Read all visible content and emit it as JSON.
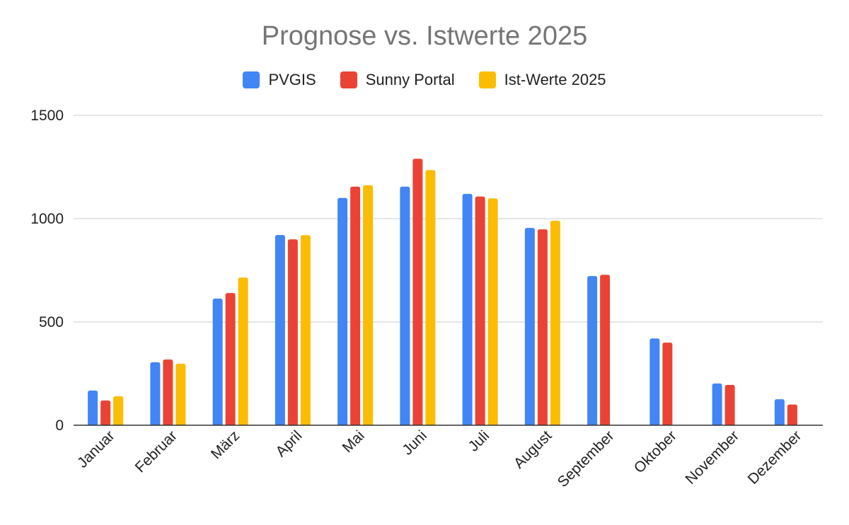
{
  "chart_data": {
    "type": "bar",
    "title": "Prognose vs. Istwerte 2025",
    "xlabel": "",
    "ylabel": "",
    "ylim": [
      0,
      1500
    ],
    "yticks": [
      0,
      500,
      1000,
      1500
    ],
    "grid": true,
    "legend_position": "top-center",
    "categories": [
      "Januar",
      "Februar",
      "März",
      "April",
      "Mai",
      "Juni",
      "Juli",
      "August",
      "September",
      "Oktober",
      "November",
      "Dezember"
    ],
    "series": [
      {
        "name": "PVGIS",
        "color": "#4285F4",
        "values": [
          168,
          305,
          613,
          921,
          1100,
          1155,
          1120,
          955,
          722,
          420,
          202,
          126
        ]
      },
      {
        "name": "Sunny Portal",
        "color": "#EA4335",
        "values": [
          120,
          318,
          640,
          900,
          1155,
          1290,
          1107,
          948,
          728,
          400,
          195,
          100
        ]
      },
      {
        "name": "Ist-Werte 2025",
        "color": "#FBBC04",
        "values": [
          140,
          298,
          715,
          920,
          1162,
          1235,
          1098,
          990,
          null,
          null,
          null,
          null
        ]
      }
    ]
  }
}
